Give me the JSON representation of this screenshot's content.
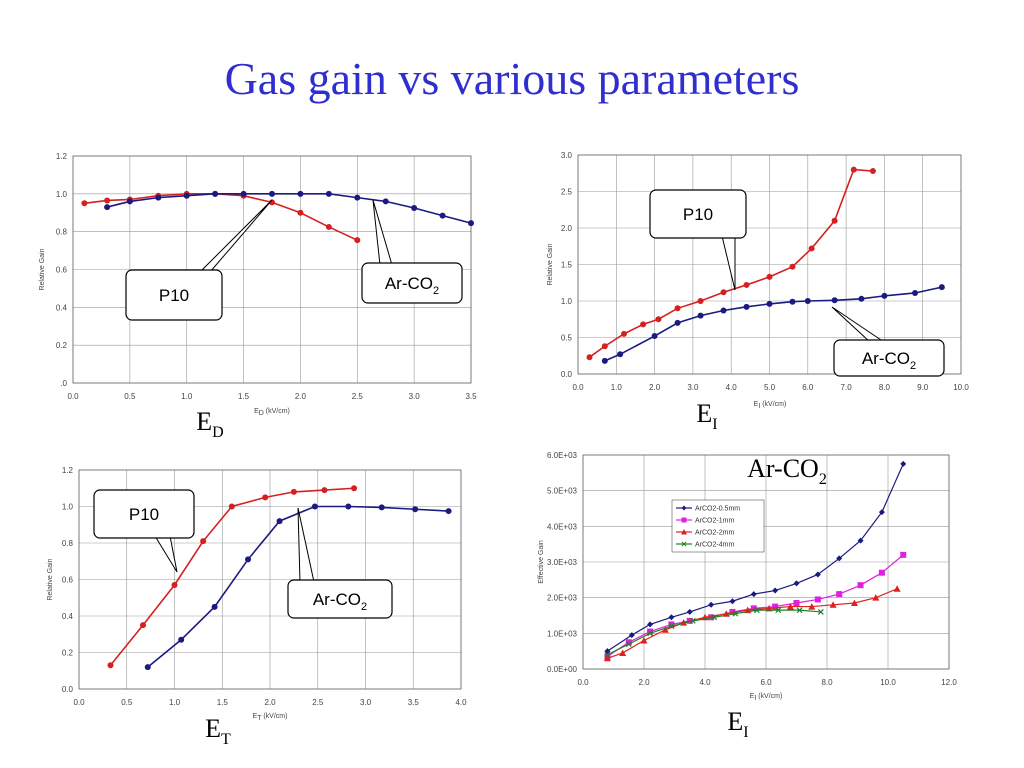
{
  "title": "Gas gain vs various parameters",
  "colors": {
    "p10": "#d62020",
    "arco2": "#1a1a80",
    "c05": "#1a1a80",
    "c1": "#e020e0",
    "c2": "#e02020",
    "c4": "#208020",
    "grid": "#999999",
    "title": "#2f2fd0"
  },
  "chart_data": [
    {
      "type": "line",
      "ylabel": "Relative Gain",
      "xlabel_main": "E",
      "xlabel_sub": "D",
      "xlabel_unit": " (kV/cm)",
      "bottom_label_main": "E",
      "bottom_label_sub": "D",
      "xlim": [
        0,
        3.5
      ],
      "ylim": [
        0,
        1.2
      ],
      "xticks": [
        0,
        0.5,
        1.0,
        1.5,
        2.0,
        2.5,
        3.0,
        3.5
      ],
      "xtick_labels": [
        "0.0",
        "0.5",
        "1.0",
        "1.5",
        "2.0",
        "2.5",
        "3.0",
        "3.5"
      ],
      "yticks": [
        0,
        0.2,
        0.4,
        0.6,
        0.8,
        1.0,
        1.2
      ],
      "ytick_labels": [
        ".0",
        "0.2",
        "0.4",
        "0.6",
        "0.8",
        "1.0",
        "1.2"
      ],
      "grid": true,
      "series": [
        {
          "color_key": "p10",
          "x": [
            0.1,
            0.3,
            0.5,
            0.75,
            1.0,
            1.25,
            1.5,
            1.75,
            2.0,
            2.25,
            2.5
          ],
          "y": [
            0.95,
            0.965,
            0.97,
            0.99,
            1.0,
            1.0,
            0.99,
            0.955,
            0.9,
            0.825,
            0.755
          ]
        },
        {
          "color_key": "arco2",
          "x": [
            0.3,
            0.5,
            0.75,
            1.0,
            1.25,
            1.5,
            1.75,
            2.0,
            2.25,
            2.5,
            2.75,
            3.0,
            3.25,
            3.5
          ],
          "y": [
            0.93,
            0.96,
            0.98,
            0.99,
            1.0,
            1.0,
            1.0,
            1.0,
            1.0,
            0.98,
            0.96,
            0.925,
            0.885,
            0.845
          ]
        }
      ],
      "callouts": [
        {
          "text": "P10",
          "sub": ""
        },
        {
          "text": "Ar-CO",
          "sub": "2"
        }
      ]
    },
    {
      "type": "line",
      "ylabel": "Relative Gain",
      "xlabel_main": "E",
      "xlabel_sub": "I",
      "xlabel_unit": " (kV/cm)",
      "bottom_label_main": "E",
      "bottom_label_sub": "I",
      "xlim": [
        0,
        10
      ],
      "ylim": [
        0,
        3.0
      ],
      "xticks": [
        0,
        1,
        2,
        3,
        4,
        5,
        6,
        7,
        8,
        9,
        10
      ],
      "xtick_labels": [
        "0.0",
        "1.0",
        "2.0",
        "3.0",
        "4.0",
        "5.0",
        "6.0",
        "7.0",
        "8.0",
        "9.0",
        "10.0"
      ],
      "yticks": [
        0,
        0.5,
        1.0,
        1.5,
        2.0,
        2.5,
        3.0
      ],
      "ytick_labels": [
        "0.0",
        "0.5",
        "1.0",
        "1.5",
        "2.0",
        "2.5",
        "3.0"
      ],
      "grid": true,
      "series": [
        {
          "color_key": "p10",
          "x": [
            0.3,
            0.7,
            1.2,
            1.7,
            2.1,
            2.6,
            3.2,
            3.8,
            4.4,
            5.0,
            5.6,
            6.1,
            6.7,
            7.2,
            7.7
          ],
          "y": [
            0.23,
            0.38,
            0.55,
            0.68,
            0.75,
            0.9,
            1.0,
            1.12,
            1.22,
            1.33,
            1.47,
            1.72,
            2.1,
            2.8,
            2.78
          ]
        },
        {
          "color_key": "arco2",
          "x": [
            0.7,
            1.1,
            2.0,
            2.6,
            3.2,
            3.8,
            4.4,
            5.0,
            5.6,
            6.0,
            6.7,
            7.4,
            8.0,
            8.8,
            9.5
          ],
          "y": [
            0.18,
            0.27,
            0.52,
            0.7,
            0.8,
            0.87,
            0.92,
            0.96,
            0.99,
            1.0,
            1.01,
            1.03,
            1.07,
            1.11,
            1.19
          ]
        }
      ],
      "callouts": [
        {
          "text": "P10",
          "sub": ""
        },
        {
          "text": "Ar-CO",
          "sub": "2"
        }
      ]
    },
    {
      "type": "line",
      "ylabel": "Relative Gain",
      "xlabel_main": "E",
      "xlabel_sub": "T",
      "xlabel_unit": " (kV/cm)",
      "bottom_label_main": "E",
      "bottom_label_sub": "T",
      "xlim": [
        0,
        4.0
      ],
      "ylim": [
        0,
        1.2
      ],
      "xticks": [
        0,
        0.5,
        1.0,
        1.5,
        2.0,
        2.5,
        3.0,
        3.5,
        4.0
      ],
      "xtick_labels": [
        "0.0",
        "0.5",
        "1.0",
        "1.5",
        "2.0",
        "2.5",
        "3.0",
        "3.5",
        "4.0"
      ],
      "yticks": [
        0,
        0.2,
        0.4,
        0.6,
        0.8,
        1.0,
        1.2
      ],
      "ytick_labels": [
        "0.0",
        "0.2",
        "0.4",
        "0.6",
        "0.8",
        "1.0",
        "1.2"
      ],
      "grid": true,
      "series": [
        {
          "color_key": "p10",
          "x": [
            0.33,
            0.67,
            1.0,
            1.3,
            1.6,
            1.95,
            2.25,
            2.57,
            2.88
          ],
          "y": [
            0.13,
            0.35,
            0.57,
            0.81,
            1.0,
            1.05,
            1.08,
            1.09,
            1.1
          ]
        },
        {
          "color_key": "arco2",
          "x": [
            0.72,
            1.07,
            1.42,
            1.77,
            2.1,
            2.47,
            2.82,
            3.17,
            3.52,
            3.87
          ],
          "y": [
            0.12,
            0.27,
            0.45,
            0.71,
            0.92,
            1.0,
            1.0,
            0.995,
            0.985,
            0.975
          ]
        }
      ],
      "callouts": [
        {
          "text": "P10",
          "sub": ""
        },
        {
          "text": "Ar-CO",
          "sub": "2"
        }
      ]
    },
    {
      "type": "line",
      "title_main": "Ar-CO",
      "title_sub": "2",
      "ylabel": "Effective Gain",
      "xlabel_main": "E",
      "xlabel_sub": "I",
      "xlabel_unit": " (kV/cm)",
      "bottom_label_main": "E",
      "bottom_label_sub": "I",
      "xlim": [
        0,
        12
      ],
      "ylim": [
        0,
        6000
      ],
      "xticks": [
        0,
        2,
        4,
        6,
        8,
        10,
        12
      ],
      "xtick_labels": [
        "0.0",
        "2.0",
        "4.0",
        "6.0",
        "8.0",
        "10.0",
        "12.0"
      ],
      "yticks": [
        0,
        1000,
        2000,
        3000,
        4000,
        5000,
        6000
      ],
      "ytick_labels": [
        "0.0E+00",
        "1.0E+03",
        "2.0E+03",
        "3.0E+03",
        "4.0E+03",
        "5.0E+03",
        "6.0E+03"
      ],
      "grid": true,
      "legend_position": "top-left",
      "series": [
        {
          "name": "ArCO2-0.5mm",
          "color_key": "c05",
          "marker": "diamond",
          "x": [
            0.8,
            1.6,
            2.2,
            2.9,
            3.5,
            4.2,
            4.9,
            5.6,
            6.3,
            7.0,
            7.7,
            8.4,
            9.1,
            9.8,
            10.5
          ],
          "y": [
            500,
            950,
            1250,
            1450,
            1600,
            1800,
            1900,
            2100,
            2200,
            2400,
            2650,
            3100,
            3600,
            4400,
            5750
          ]
        },
        {
          "name": "ArCO2-1mm",
          "color_key": "c1",
          "marker": "square",
          "x": [
            0.8,
            1.5,
            2.2,
            2.9,
            3.5,
            4.2,
            4.9,
            5.6,
            6.3,
            7.0,
            7.7,
            8.4,
            9.1,
            9.8,
            10.5
          ],
          "y": [
            350,
            750,
            1050,
            1250,
            1350,
            1450,
            1600,
            1700,
            1750,
            1850,
            1950,
            2100,
            2350,
            2700,
            3200
          ]
        },
        {
          "name": "ArCO2-2mm",
          "color_key": "c2",
          "marker": "triangle",
          "x": [
            0.8,
            1.3,
            2.0,
            2.7,
            3.3,
            4.0,
            4.7,
            5.4,
            6.1,
            6.8,
            7.5,
            8.2,
            8.9,
            9.6,
            10.3
          ],
          "y": [
            300,
            450,
            800,
            1100,
            1300,
            1450,
            1550,
            1650,
            1700,
            1750,
            1750,
            1800,
            1850,
            2000,
            2250
          ]
        },
        {
          "name": "ArCO2-4mm",
          "color_key": "c4",
          "marker": "x",
          "x": [
            0.8,
            1.5,
            2.2,
            2.9,
            3.6,
            4.3,
            5.0,
            5.7,
            6.4,
            7.1,
            7.8
          ],
          "y": [
            400,
            700,
            1000,
            1200,
            1350,
            1450,
            1550,
            1650,
            1650,
            1650,
            1600
          ]
        }
      ]
    }
  ]
}
